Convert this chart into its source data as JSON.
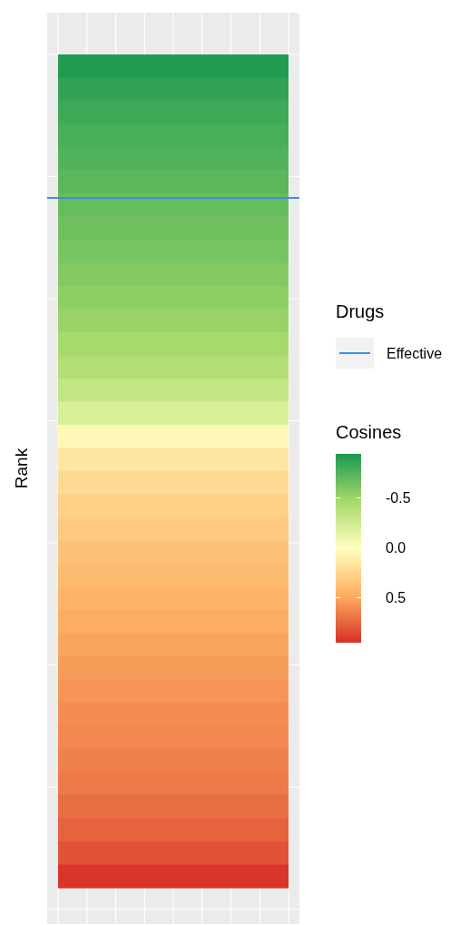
{
  "chart_data": {
    "type": "heatmap",
    "ylabel": "Rank",
    "legend_title": "Drugs",
    "clabel": "Cosines",
    "categories": [
      null
    ],
    "y_categories": [
      null,
      null,
      null,
      null,
      null,
      null,
      null,
      null,
      null,
      null,
      null,
      null,
      null,
      null,
      null,
      null,
      null,
      null,
      null,
      null,
      null,
      null,
      null,
      null,
      null,
      null,
      null,
      null,
      null,
      null,
      null,
      null,
      null,
      null,
      null,
      null
    ],
    "cells": [
      [
        -0.92
      ],
      [
        -0.86
      ],
      [
        -0.82
      ],
      [
        -0.78
      ],
      [
        -0.75
      ],
      [
        -0.72
      ],
      [
        -0.68
      ],
      [
        -0.65
      ],
      [
        -0.62
      ],
      [
        -0.59
      ],
      [
        -0.55
      ],
      [
        -0.51
      ],
      [
        -0.46
      ],
      [
        -0.4
      ],
      [
        -0.32
      ],
      [
        -0.2
      ],
      [
        0.05
      ],
      [
        0.15
      ],
      [
        0.22
      ],
      [
        0.28
      ],
      [
        0.32
      ],
      [
        0.36
      ],
      [
        0.4
      ],
      [
        0.44
      ],
      [
        0.48
      ],
      [
        0.51
      ],
      [
        0.54
      ],
      [
        0.57
      ],
      [
        0.6
      ],
      [
        0.62
      ],
      [
        0.65
      ],
      [
        0.68
      ],
      [
        0.72
      ],
      [
        0.76
      ],
      [
        0.82
      ],
      [
        0.93
      ]
    ],
    "clim": [
      -0.94,
      0.95
    ],
    "cticks": [
      {
        "value": -0.5,
        "label": "-0.5"
      },
      {
        "value": 0,
        "label": "0.0"
      },
      {
        "value": 0.5,
        "label": "0.5"
      }
    ],
    "colors": [
      "#1a9850",
      "#a6d96a",
      "#ffffbf",
      "#fdae61",
      "#d73027"
    ],
    "annotations": [
      "Effective"
    ],
    "grid": true,
    "tick_labels": false
  }
}
